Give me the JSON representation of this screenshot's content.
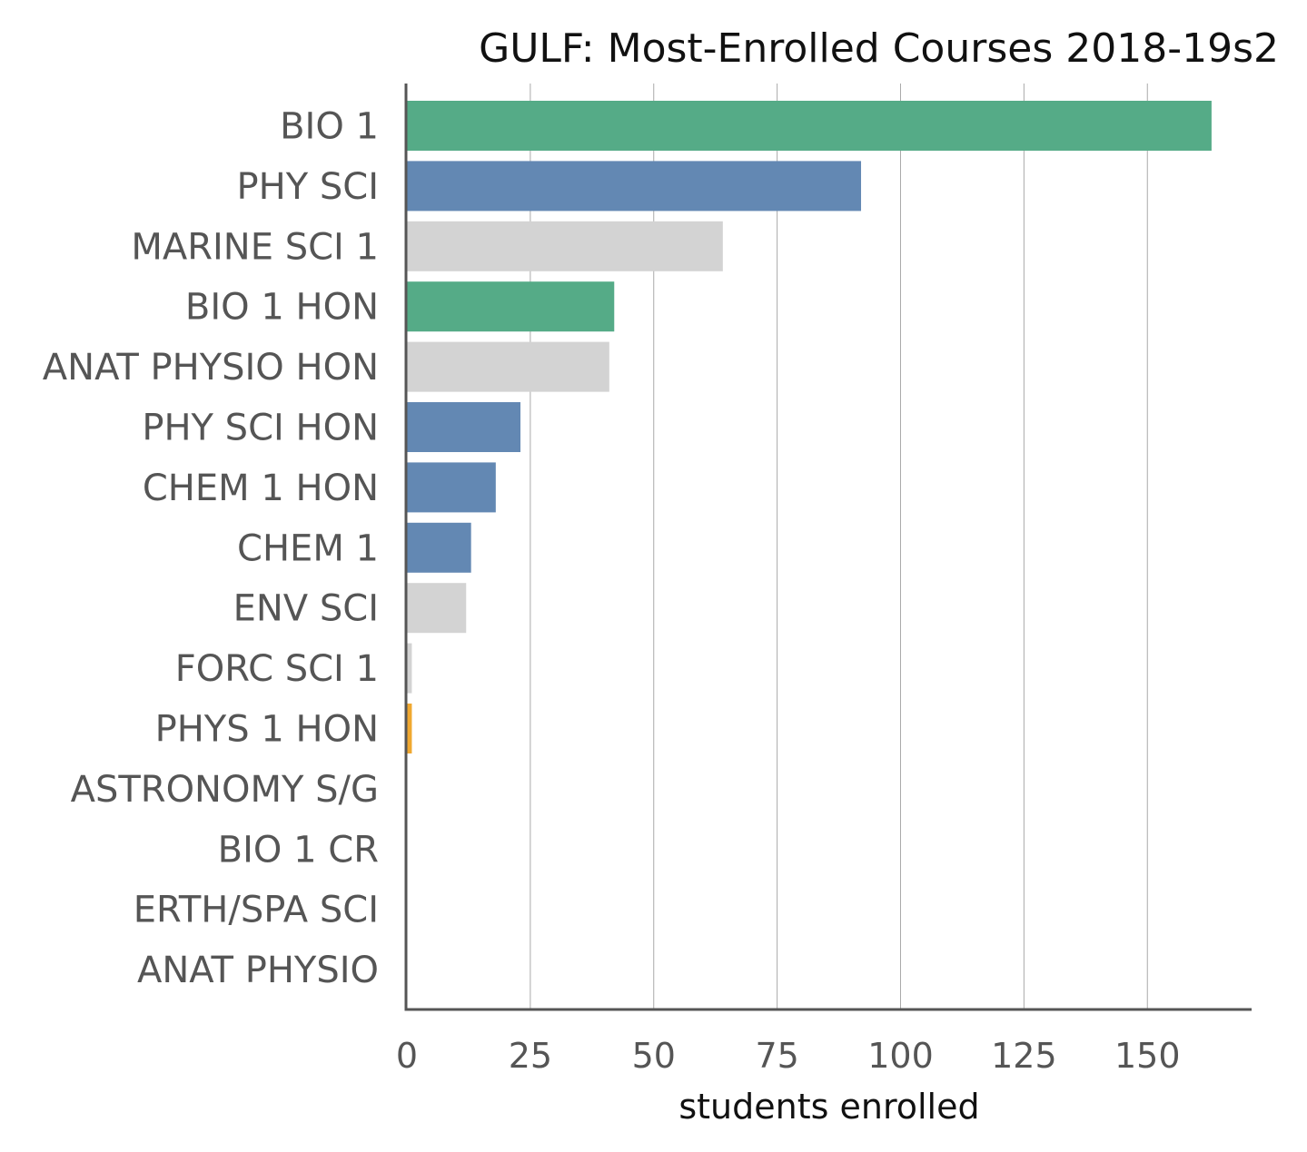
{
  "chart_data": {
    "type": "bar",
    "orientation": "horizontal",
    "title": "GULF: Most-Enrolled Courses 2018-19s2",
    "xlabel": "students enrolled",
    "ylabel": "",
    "xlim": [
      0,
      170
    ],
    "xticks": [
      0,
      25,
      50,
      75,
      100,
      125,
      150
    ],
    "xtick_labels": [
      "0",
      "25",
      "50",
      "75",
      "100",
      "125",
      "150"
    ],
    "grid": "vertical",
    "categories": [
      "BIO 1",
      "PHY SCI",
      "MARINE SCI 1",
      "BIO 1 HON",
      "ANAT PHYSIO HON",
      "PHY SCI HON",
      "CHEM 1 HON",
      "CHEM 1",
      "ENV SCI",
      "FORC SCI 1",
      "PHYS 1 HON",
      "ASTRONOMY S/G",
      "BIO 1 CR",
      "ERTH/SPA SCI",
      "ANAT PHYSIO"
    ],
    "values": [
      163,
      92,
      64,
      42,
      41,
      23,
      18,
      13,
      12,
      1,
      1,
      0,
      0,
      0,
      0
    ],
    "colors": [
      "#55ab87",
      "#6388b3",
      "#d3d3d3",
      "#55ab87",
      "#d3d3d3",
      "#6388b3",
      "#6388b3",
      "#6388b3",
      "#d3d3d3",
      "#d3d3d3",
      "#f0a830",
      "#d3d3d3",
      "#d3d3d3",
      "#d3d3d3",
      "#d3d3d3"
    ]
  }
}
